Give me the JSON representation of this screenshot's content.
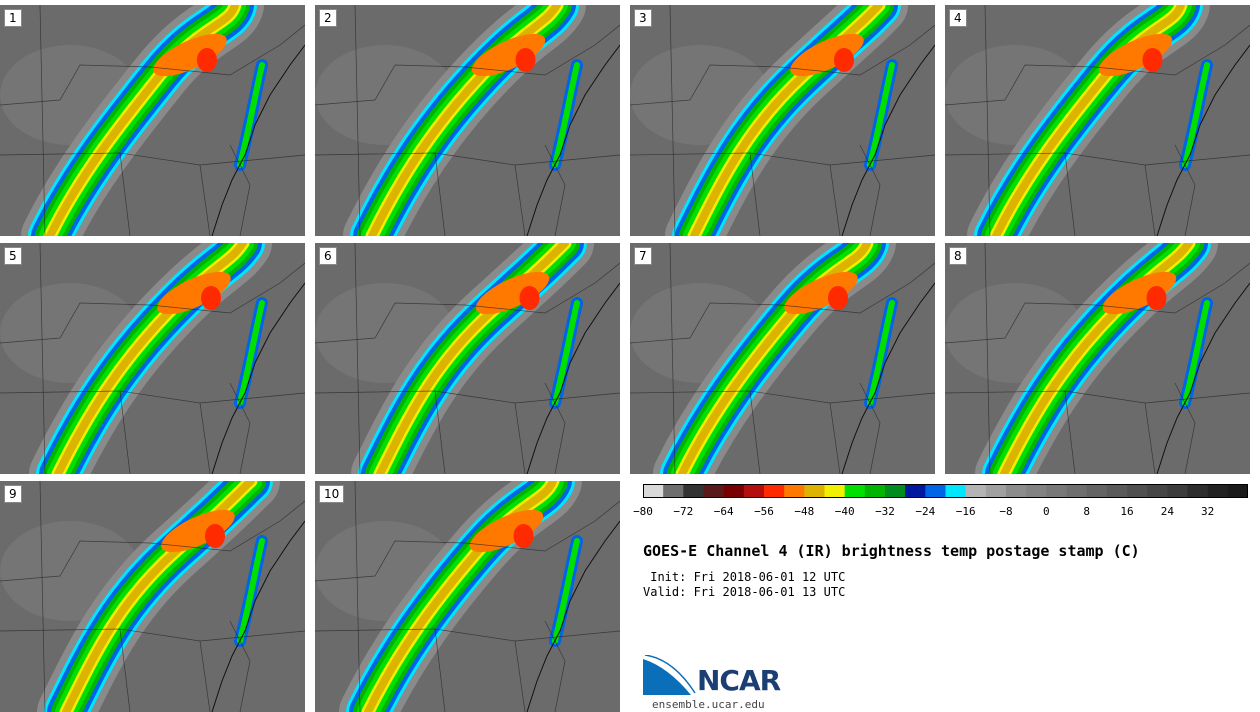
{
  "panels": [
    {
      "label": "1"
    },
    {
      "label": "2"
    },
    {
      "label": "3"
    },
    {
      "label": "4"
    },
    {
      "label": "5"
    },
    {
      "label": "6"
    },
    {
      "label": "7"
    },
    {
      "label": "8"
    },
    {
      "label": "9"
    },
    {
      "label": "10"
    }
  ],
  "colorbar": {
    "colors": [
      "#d9d9d9",
      "#6e6e6e",
      "#333333",
      "#5a1a1a",
      "#780000",
      "#b40f0f",
      "#ff2a00",
      "#ff7800",
      "#dcb400",
      "#f0f000",
      "#00e000",
      "#00b400",
      "#008c1e",
      "#0018a0",
      "#0064e6",
      "#00e6ff",
      "#b4b4b4",
      "#a0a0a0",
      "#8c8c8c",
      "#828282",
      "#787878",
      "#6e6e6e",
      "#646464",
      "#5a5a5a",
      "#505050",
      "#464646",
      "#3c3c3c",
      "#2d2d2d",
      "#222222",
      "#1a1a1a"
    ],
    "ticks": [
      "−80",
      "−72",
      "−64",
      "−56",
      "−48",
      "−40",
      "−32",
      "−24",
      "−16",
      "−8",
      "0",
      "8",
      "16",
      "24",
      "32"
    ]
  },
  "title": "GOES-E Channel 4 (IR) brightness temp postage stamp (C)",
  "init_line": " Init: Fri 2018-06-01 12 UTC",
  "valid_line": "Valid: Fri 2018-06-01 13 UTC",
  "logo": {
    "name": "NCAR",
    "url": "ensemble.ucar.edu"
  },
  "colors": {
    "background": "#6b6b6b",
    "cold_cloud": "#f0f000",
    "ring": "#00b400"
  }
}
